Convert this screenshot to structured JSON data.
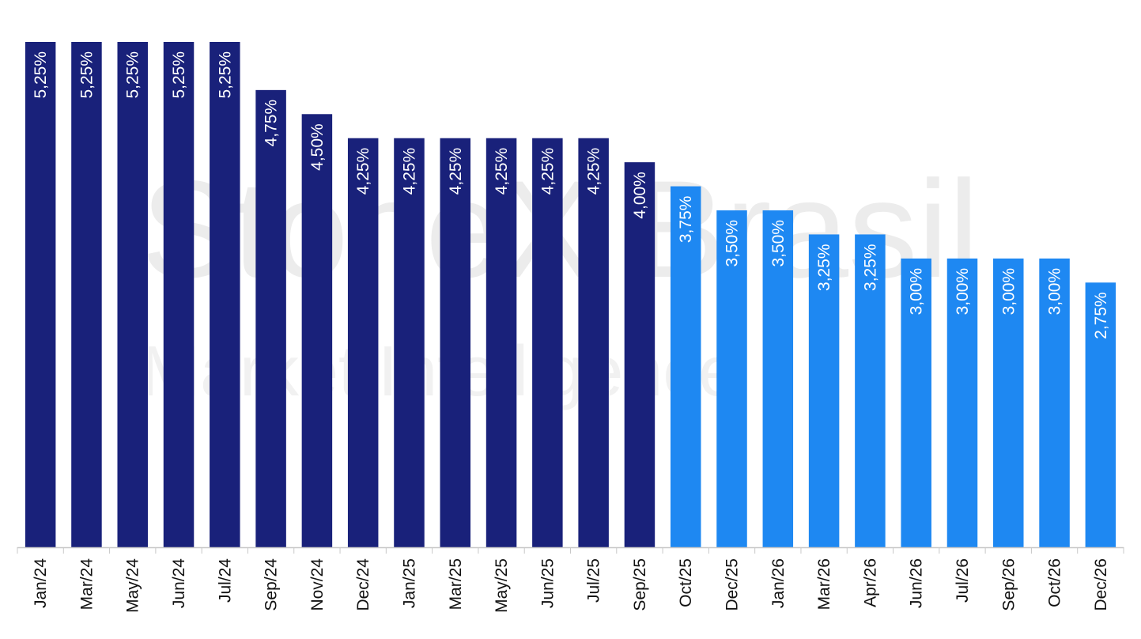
{
  "watermark": {
    "brand": "StoneX Brasil",
    "subtitle": "Market Intelligence"
  },
  "colors": {
    "historical": "#19217a",
    "forecast": "#1e88f2",
    "axis": "#c8c8c8",
    "label": "#ffffff",
    "tick": "#111111"
  },
  "chart_data": {
    "type": "bar",
    "title": "",
    "xlabel": "",
    "ylabel": "",
    "ylim": [
      0,
      5.25
    ],
    "grid": false,
    "legend": "none",
    "categories": [
      "Jan/24",
      "Mar/24",
      "May/24",
      "Jun/24",
      "Jul/24",
      "Sep/24",
      "Nov/24",
      "Dec/24",
      "Jan/25",
      "Mar/25",
      "May/25",
      "Jun/25",
      "Jul/25",
      "Sep/25",
      "Oct/25",
      "Dec/25",
      "Jan/26",
      "Mar/26",
      "Apr/26",
      "Jun/26",
      "Jul/26",
      "Sep/26",
      "Oct/26",
      "Dec/26"
    ],
    "values": [
      5.25,
      5.25,
      5.25,
      5.25,
      5.25,
      4.75,
      4.5,
      4.25,
      4.25,
      4.25,
      4.25,
      4.25,
      4.25,
      4.0,
      3.75,
      3.5,
      3.5,
      3.25,
      3.25,
      3.0,
      3.0,
      3.0,
      3.0,
      2.75
    ],
    "labels": [
      "5,25%",
      "5,25%",
      "5,25%",
      "5,25%",
      "5,25%",
      "4,75%",
      "4,50%",
      "4,25%",
      "4,25%",
      "4,25%",
      "4,25%",
      "4,25%",
      "4,25%",
      "4,00%",
      "3,75%",
      "3,50%",
      "3,50%",
      "3,25%",
      "3,25%",
      "3,00%",
      "3,00%",
      "3,00%",
      "3,00%",
      "2,75%"
    ],
    "segments": [
      "historical",
      "historical",
      "historical",
      "historical",
      "historical",
      "historical",
      "historical",
      "historical",
      "historical",
      "historical",
      "historical",
      "historical",
      "historical",
      "historical",
      "forecast",
      "forecast",
      "forecast",
      "forecast",
      "forecast",
      "forecast",
      "forecast",
      "forecast",
      "forecast",
      "forecast"
    ]
  }
}
